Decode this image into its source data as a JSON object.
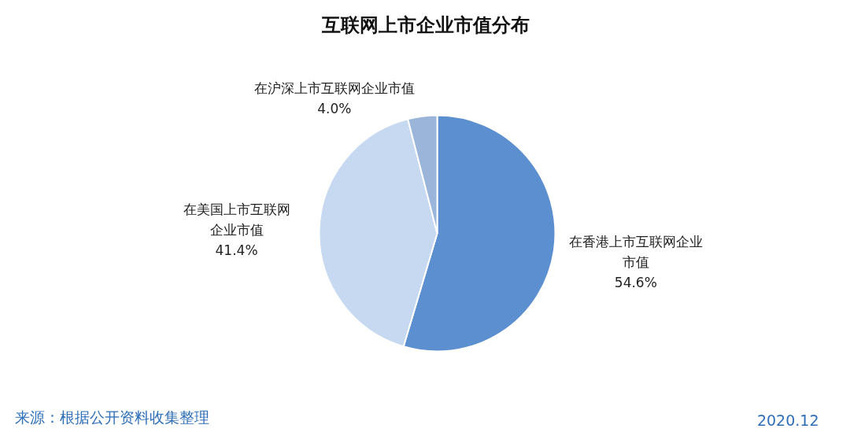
{
  "chart_data": {
    "type": "pie",
    "title": "互联网上市企业市值分布",
    "categories": [
      "在香港上市互联网企业市值",
      "在美国上市互联网企业市值",
      "在沪深上市互联网企业市值"
    ],
    "values": [
      54.6,
      41.4,
      4.0
    ],
    "value_labels": [
      "54.6%",
      "41.4%",
      "4.0%"
    ],
    "colors": [
      "#5b8fd0",
      "#c7d9f1",
      "#9ab5d9"
    ],
    "annotations": [
      "来源：根据公开资料收集整理",
      "2020.12"
    ]
  }
}
